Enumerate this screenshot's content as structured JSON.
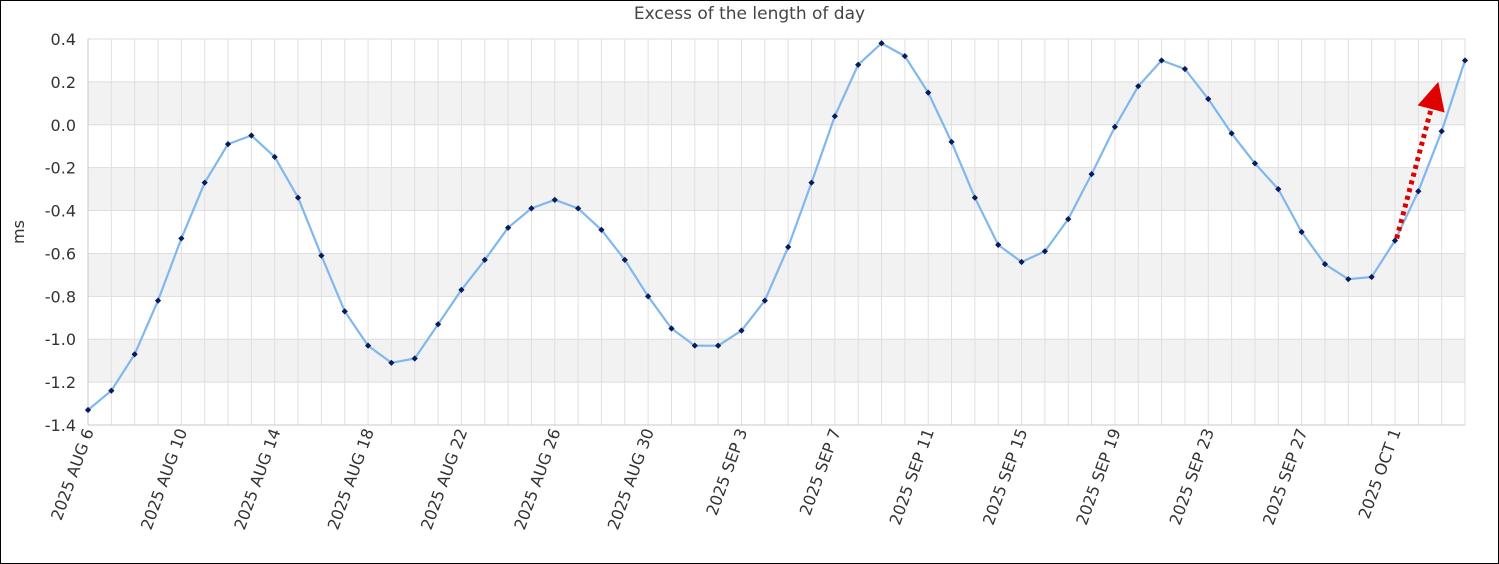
{
  "chart_data": {
    "type": "line",
    "title": "Excess of the length of day",
    "xlabel": "",
    "ylabel": "ms",
    "ylim": [
      -1.4,
      0.4
    ],
    "yticks": [
      "0.4",
      "0.2",
      "0.0",
      "-0.2",
      "-0.4",
      "-0.6",
      "-0.8",
      "-1.0",
      "-1.2",
      "-1.4"
    ],
    "xtick_labels": [
      "2025 AUG 6",
      "2025 AUG 10",
      "2025 AUG 14",
      "2025 AUG 18",
      "2025 AUG 22",
      "2025 AUG 26",
      "2025 AUG 30",
      "2025 SEP 3",
      "2025 SEP 7",
      "2025 SEP 11",
      "2025 SEP 15",
      "2025 SEP 19",
      "2025 SEP 23",
      "2025 SEP 27",
      "2025 OCT 1"
    ],
    "x_start_date": "2025-08-06",
    "x_step_days": 1,
    "grid": true,
    "alternating_bands": true,
    "series": [
      {
        "line_color": "#80b8ee",
        "marker_color": "#0a1a5c",
        "values": [
          -1.33,
          -1.24,
          -1.07,
          -0.82,
          -0.53,
          -0.27,
          -0.09,
          -0.05,
          -0.15,
          -0.34,
          -0.61,
          -0.87,
          -1.03,
          -1.11,
          -1.09,
          -0.93,
          -0.77,
          -0.63,
          -0.48,
          -0.39,
          -0.35,
          -0.39,
          -0.49,
          -0.63,
          -0.8,
          -0.95,
          -1.03,
          -1.03,
          -0.96,
          -0.82,
          -0.57,
          -0.27,
          0.04,
          0.28,
          0.38,
          0.32,
          0.15,
          -0.08,
          -0.34,
          -0.56,
          -0.64,
          -0.59,
          -0.44,
          -0.23,
          -0.01,
          0.18,
          0.3,
          0.26,
          0.12,
          -0.04,
          -0.18,
          -0.3,
          -0.5,
          -0.65,
          -0.72,
          -0.71,
          -0.54,
          -0.31,
          -0.03,
          0.3
        ]
      }
    ],
    "annotation": {
      "type": "arrow",
      "style": "dotted",
      "color": "#e00000",
      "from": {
        "x": "2025-09-30",
        "y": -0.53
      },
      "to": {
        "x": "2025-10-02",
        "y": 0.2
      }
    }
  }
}
